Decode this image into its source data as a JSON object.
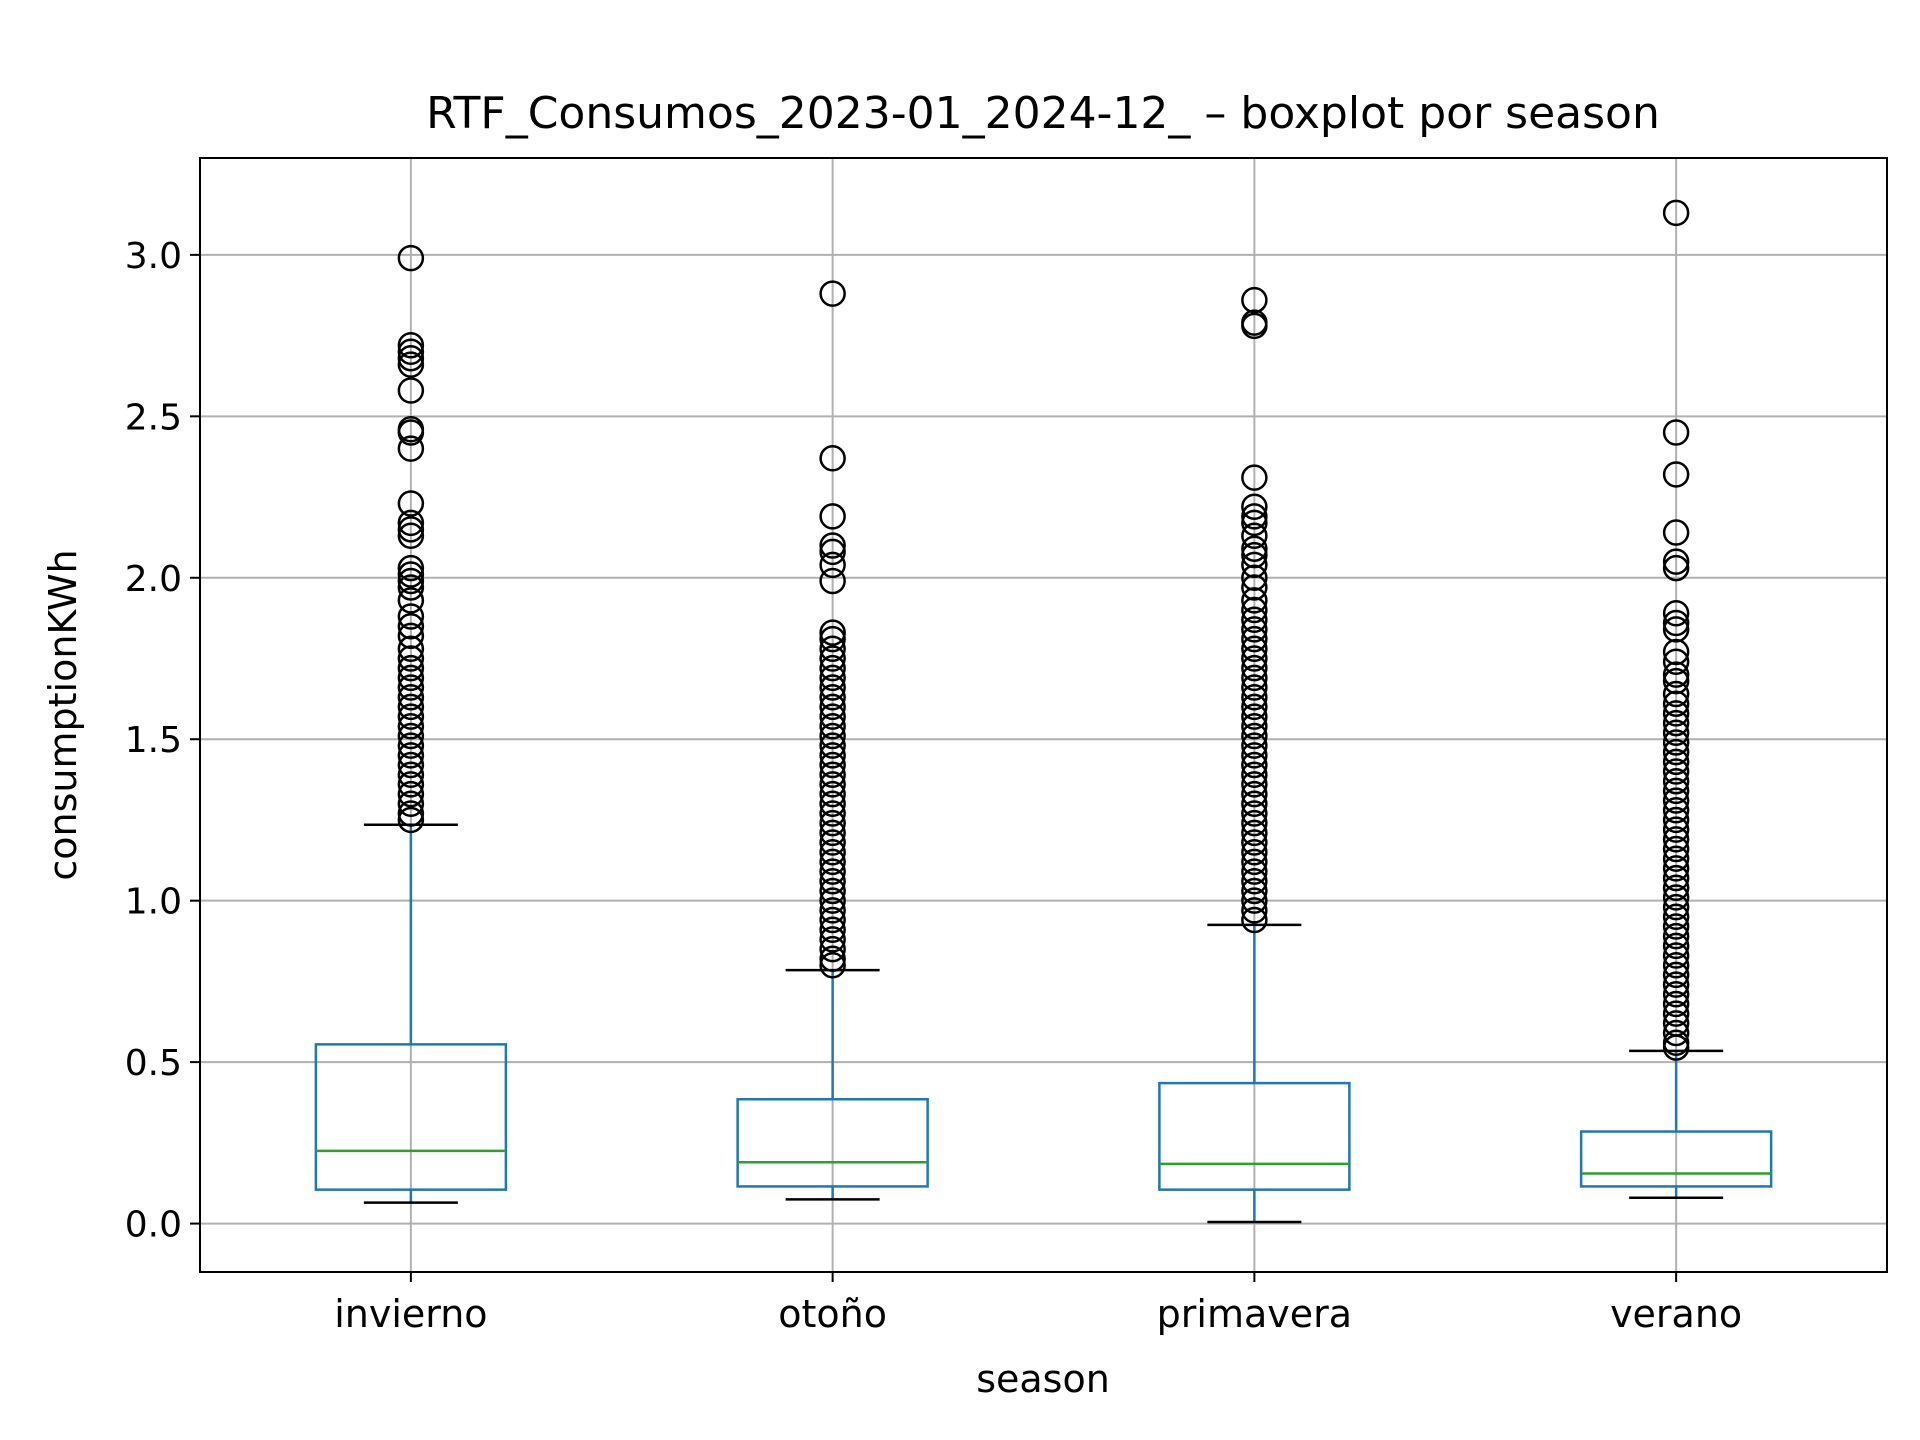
{
  "chart_data": {
    "type": "boxplot",
    "title": "RTF_Consumos_2023-01_2024-12_ – boxplot por season",
    "xlabel": "season",
    "ylabel": "consumptionKWh",
    "ylim": [
      -0.15,
      3.3
    ],
    "yticks": [
      "0.0",
      "0.5",
      "1.0",
      "1.5",
      "2.0",
      "2.5",
      "3.0"
    ],
    "ytick_values": [
      0.0,
      0.5,
      1.0,
      1.5,
      2.0,
      2.5,
      3.0
    ],
    "grid": true,
    "colors": {
      "box": "#1f77b4",
      "median": "#2ca02c",
      "whisker_cap": "#000000",
      "flier": "#000000",
      "grid": "#b0b0b0"
    },
    "categories": [
      "invierno",
      "otoño",
      "primavera",
      "verano"
    ],
    "boxes": [
      {
        "category": "invierno",
        "whisker_low": 0.065,
        "q1": 0.105,
        "median": 0.225,
        "q3": 0.555,
        "whisker_high": 1.235,
        "fliers": [
          2.99,
          2.72,
          2.7,
          2.68,
          2.66,
          2.58,
          2.46,
          2.45,
          2.4,
          2.23,
          2.17,
          2.15,
          2.13,
          2.03,
          2.01,
          1.99,
          1.97,
          1.93,
          1.88,
          1.85,
          1.82,
          1.78,
          1.75,
          1.72,
          1.69,
          1.66,
          1.63,
          1.6,
          1.57,
          1.54,
          1.51,
          1.48,
          1.45,
          1.42,
          1.39,
          1.36,
          1.33,
          1.3,
          1.27,
          1.25
        ]
      },
      {
        "category": "otoño",
        "whisker_low": 0.075,
        "q1": 0.115,
        "median": 0.19,
        "q3": 0.385,
        "whisker_high": 0.785,
        "fliers": [
          2.88,
          2.37,
          2.19,
          2.1,
          2.08,
          2.04,
          1.99,
          1.83,
          1.81,
          1.78,
          1.75,
          1.72,
          1.69,
          1.66,
          1.63,
          1.6,
          1.57,
          1.54,
          1.51,
          1.48,
          1.45,
          1.42,
          1.39,
          1.36,
          1.33,
          1.3,
          1.27,
          1.24,
          1.21,
          1.18,
          1.15,
          1.12,
          1.09,
          1.06,
          1.03,
          1.0,
          0.97,
          0.94,
          0.91,
          0.88,
          0.85,
          0.82,
          0.8
        ]
      },
      {
        "category": "primavera",
        "whisker_low": 0.005,
        "q1": 0.105,
        "median": 0.185,
        "q3": 0.435,
        "whisker_high": 0.925,
        "fliers": [
          2.86,
          2.79,
          2.78,
          2.31,
          2.22,
          2.19,
          2.17,
          2.13,
          2.09,
          2.07,
          2.04,
          2.0,
          1.97,
          1.93,
          1.9,
          1.87,
          1.84,
          1.81,
          1.78,
          1.75,
          1.72,
          1.69,
          1.66,
          1.63,
          1.6,
          1.57,
          1.54,
          1.51,
          1.48,
          1.45,
          1.42,
          1.39,
          1.36,
          1.33,
          1.3,
          1.27,
          1.24,
          1.21,
          1.18,
          1.15,
          1.12,
          1.09,
          1.06,
          1.03,
          1.0,
          0.97,
          0.94
        ]
      },
      {
        "category": "verano",
        "whisker_low": 0.08,
        "q1": 0.115,
        "median": 0.155,
        "q3": 0.285,
        "whisker_high": 0.535,
        "fliers": [
          3.13,
          2.45,
          2.32,
          2.14,
          2.05,
          2.03,
          1.89,
          1.86,
          1.84,
          1.77,
          1.74,
          1.7,
          1.68,
          1.64,
          1.61,
          1.58,
          1.55,
          1.52,
          1.49,
          1.46,
          1.43,
          1.4,
          1.37,
          1.34,
          1.31,
          1.28,
          1.25,
          1.22,
          1.19,
          1.16,
          1.13,
          1.1,
          1.07,
          1.04,
          1.01,
          0.98,
          0.95,
          0.92,
          0.89,
          0.86,
          0.83,
          0.8,
          0.77,
          0.74,
          0.71,
          0.68,
          0.65,
          0.62,
          0.59,
          0.56,
          0.545
        ]
      }
    ]
  }
}
